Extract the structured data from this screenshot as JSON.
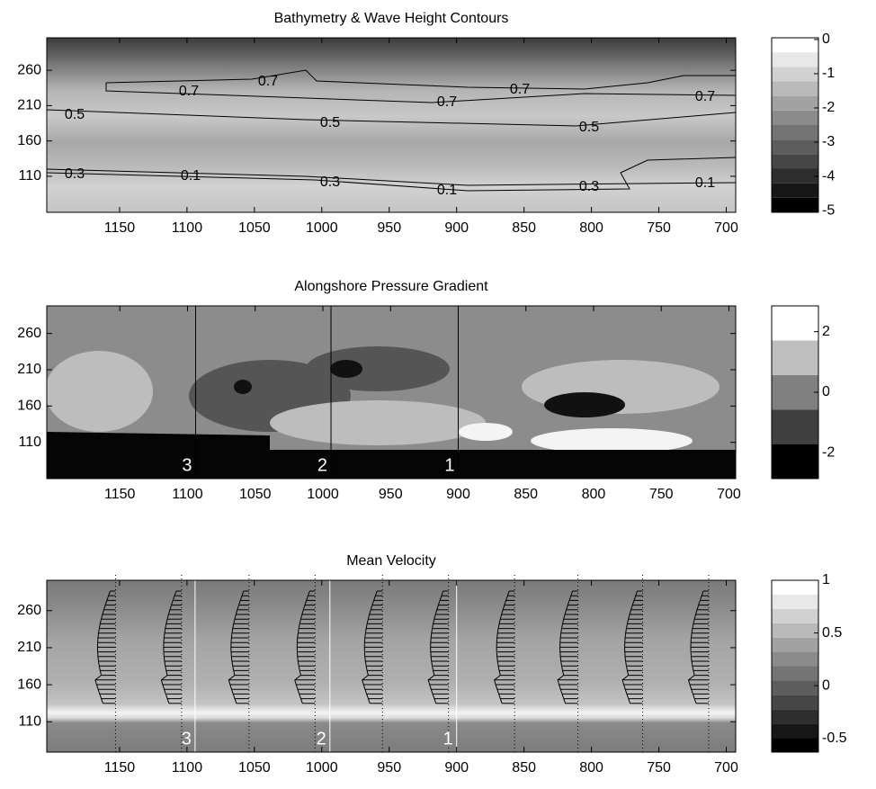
{
  "chart_data": [
    {
      "type": "contour",
      "title": "Bathymetry & Wave Height Contours",
      "xlim": [
        1204,
        693
      ],
      "xticks": [
        1150,
        1100,
        1050,
        1000,
        950,
        900,
        850,
        800,
        750,
        700
      ],
      "ylim": [
        59,
        306
      ],
      "yticks": [
        110,
        160,
        210,
        260
      ],
      "colorbar": {
        "lim": [
          -5.05,
          0.05
        ],
        "ticks": [
          0,
          -1,
          -2,
          -3,
          -4,
          -5
        ]
      },
      "contour_labels": [
        0.7,
        0.7,
        0.7,
        0.7,
        0.7,
        0.5,
        0.5,
        0.5,
        0.3,
        0.3,
        0.3,
        0.1,
        0.1,
        0.1
      ]
    },
    {
      "type": "contour",
      "title": "Alongshore Pressure Gradient",
      "xlim": [
        1204,
        695
      ],
      "xticks": [
        1150,
        1100,
        1050,
        1000,
        950,
        900,
        850,
        800,
        750,
        700
      ],
      "ylim": [
        60,
        298
      ],
      "yticks": [
        110,
        160,
        210,
        260
      ],
      "colorbar": {
        "lim": [
          -2.85,
          2.85
        ],
        "ticks": [
          2,
          0,
          -2
        ]
      },
      "sections": [
        {
          "label": "3",
          "x": 1094
        },
        {
          "label": "2",
          "x": 994
        },
        {
          "label": "1",
          "x": 900
        }
      ]
    },
    {
      "type": "contour",
      "title": "Mean Velocity",
      "xlim": [
        1204,
        693
      ],
      "xticks": [
        1150,
        1100,
        1050,
        1000,
        950,
        900,
        850,
        800,
        750,
        700
      ],
      "ylim": [
        69,
        301
      ],
      "yticks": [
        110,
        160,
        210,
        260
      ],
      "colorbar": {
        "lim": [
          -0.63,
          1
        ],
        "ticks": [
          1,
          0.5,
          0,
          -0.5
        ]
      },
      "sections": [
        {
          "label": "3",
          "x": 1094
        },
        {
          "label": "2",
          "x": 994
        },
        {
          "label": "1",
          "x": 900
        }
      ],
      "stations": [
        1153,
        1104,
        1054,
        1005,
        955,
        906,
        857,
        810,
        762,
        713
      ]
    }
  ]
}
